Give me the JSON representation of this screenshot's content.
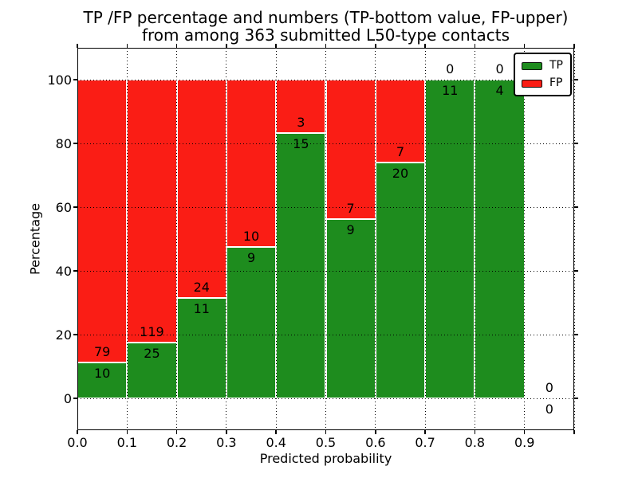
{
  "chart_data": {
    "type": "bar",
    "stacked": true,
    "title_line1": "TP /FP percentage and numbers (TP-bottom value, FP-upper)",
    "title_line2": "from among 363 submitted L50-type contacts",
    "xlabel": "Predicted probability",
    "ylabel": "Percentage",
    "xlim": [
      0.0,
      1.0
    ],
    "ylim": [
      -10,
      110
    ],
    "grid": true,
    "grid_style": "dotted-black-above-bars",
    "total_contacts": 363,
    "colors": {
      "tp": "#1e8c1e",
      "fp": "#fa1d15",
      "bar_edge": "#ffffff"
    },
    "xticks": {
      "values": [
        0.0,
        0.1,
        0.2,
        0.3,
        0.4,
        0.5,
        0.6,
        0.7,
        0.8,
        0.9,
        1.0
      ],
      "labels": [
        "0.0",
        "0.1",
        "0.2",
        "0.3",
        "0.4",
        "0.5",
        "0.6",
        "0.7",
        "0.8",
        "0.9",
        ""
      ]
    },
    "yticks": {
      "values": [
        0,
        20,
        40,
        60,
        80,
        100
      ],
      "labels": [
        "0",
        "20",
        "40",
        "60",
        "80",
        "100"
      ]
    },
    "bins": [
      {
        "range": [
          0.0,
          0.1
        ],
        "tp_count": 10,
        "fp_count": 79,
        "tp_pct": 11.2,
        "fp_pct": 88.8
      },
      {
        "range": [
          0.1,
          0.2
        ],
        "tp_count": 25,
        "fp_count": 119,
        "tp_pct": 17.4,
        "fp_pct": 82.6
      },
      {
        "range": [
          0.2,
          0.3
        ],
        "tp_count": 11,
        "fp_count": 24,
        "tp_pct": 31.4,
        "fp_pct": 68.6
      },
      {
        "range": [
          0.3,
          0.4
        ],
        "tp_count": 9,
        "fp_count": 10,
        "tp_pct": 47.4,
        "fp_pct": 52.6
      },
      {
        "range": [
          0.4,
          0.5
        ],
        "tp_count": 15,
        "fp_count": 3,
        "tp_pct": 83.3,
        "fp_pct": 16.7
      },
      {
        "range": [
          0.5,
          0.6
        ],
        "tp_count": 9,
        "fp_count": 7,
        "tp_pct": 56.2,
        "fp_pct": 43.8
      },
      {
        "range": [
          0.6,
          0.7
        ],
        "tp_count": 20,
        "fp_count": 7,
        "tp_pct": 74.1,
        "fp_pct": 25.9
      },
      {
        "range": [
          0.7,
          0.8
        ],
        "tp_count": 11,
        "fp_count": 0,
        "tp_pct": 100,
        "fp_pct": 0
      },
      {
        "range": [
          0.8,
          0.9
        ],
        "tp_count": 4,
        "fp_count": 0,
        "tp_pct": 100,
        "fp_pct": 0
      },
      {
        "range": [
          0.9,
          1.0
        ],
        "tp_count": 0,
        "fp_count": 0,
        "tp_pct": 0,
        "fp_pct": 0
      }
    ],
    "series": [
      {
        "name": "TP",
        "values_pct": [
          11.2,
          17.4,
          31.4,
          47.4,
          83.3,
          56.2,
          74.1,
          100,
          100,
          0
        ],
        "counts": [
          10,
          25,
          11,
          9,
          15,
          9,
          20,
          11,
          4,
          0
        ]
      },
      {
        "name": "FP",
        "values_pct": [
          88.8,
          82.6,
          68.6,
          52.6,
          16.7,
          43.8,
          25.9,
          0,
          0,
          0
        ],
        "counts": [
          79,
          119,
          24,
          10,
          3,
          7,
          7,
          0,
          0,
          0
        ]
      }
    ],
    "legend": {
      "position": "upper right",
      "items": [
        {
          "label": "TP",
          "color": "#1e8c1e"
        },
        {
          "label": "FP",
          "color": "#fa1d15"
        }
      ]
    }
  }
}
